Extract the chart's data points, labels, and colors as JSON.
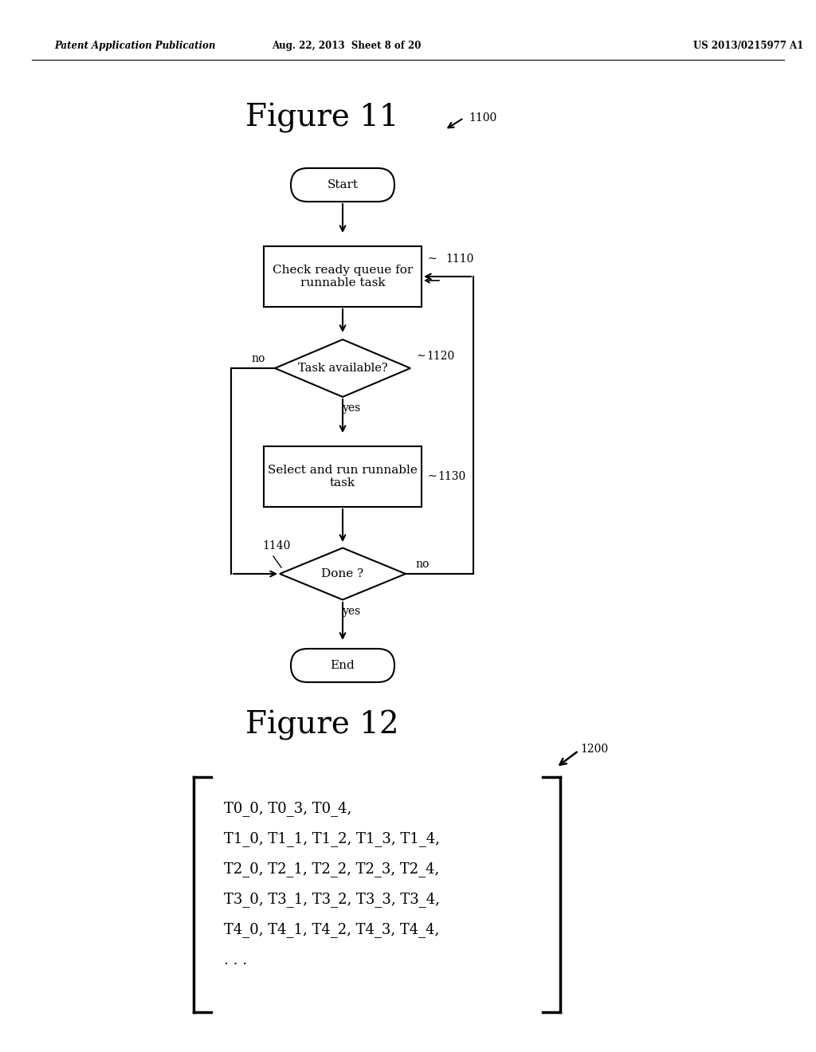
{
  "header_left": "Patent Application Publication",
  "header_mid": "Aug. 22, 2013  Sheet 8 of 20",
  "header_right": "US 2013/0215977 A1",
  "fig11_title": "Figure 11",
  "fig11_ref": "1100",
  "fig12_title": "Figure 12",
  "fig12_ref": "1200",
  "start_label": "Start",
  "end_label": "End",
  "box1_label": "Check ready queue for\nrunnable task",
  "box1_ref": "1110",
  "diamond1_label": "Task available?",
  "diamond1_ref": "1120",
  "box2_label": "Select and run runnable\ntask",
  "box2_ref": "1130",
  "diamond2_label": "Done ?",
  "diamond2_ref": "1140",
  "no_label": "no",
  "yes_label": "yes",
  "array_lines": [
    "T0_0, T0_3, T0_4,",
    "T1_0, T1_1, T1_2, T1_3, T1_4,",
    "T2_0, T2_1, T2_2, T2_3, T2_4,",
    "T3_0, T3_1, T3_2, T3_3, T3_4,",
    "T4_0, T4_1, T4_2, T4_3, T4_4,",
    ". . ."
  ],
  "bg_color": "#ffffff",
  "shape_color": "#ffffff",
  "line_color": "#000000",
  "text_color": "#000000"
}
